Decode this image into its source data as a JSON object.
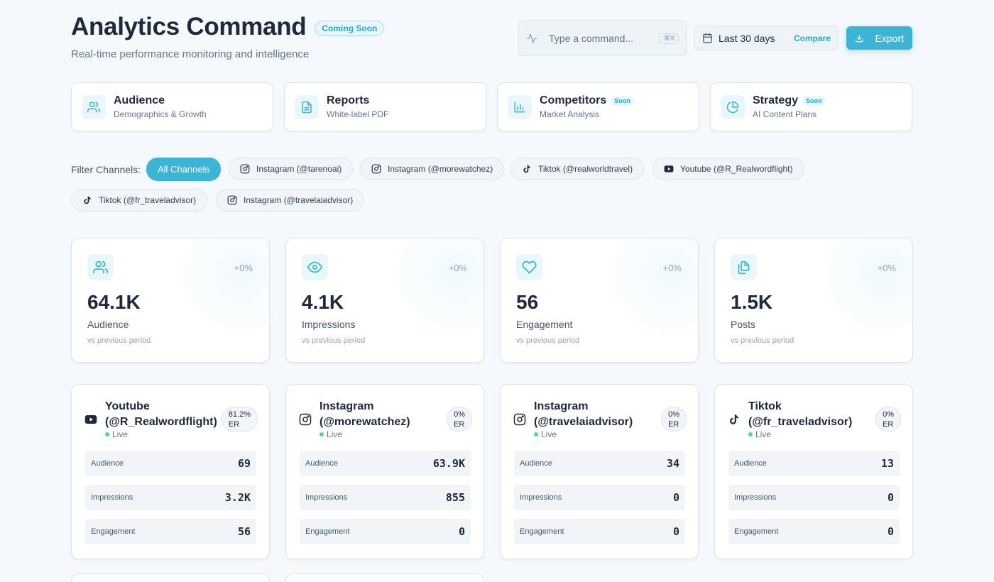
{
  "header": {
    "title": "Analytics Command",
    "badge": "Coming Soon",
    "subtitle": "Real-time performance monitoring and intelligence",
    "command_placeholder": "Type a command...",
    "command_shortcut": "⌘K",
    "date_range": "Last 30 days",
    "compare_label": "Compare",
    "export_label": "Export"
  },
  "nav": [
    {
      "title": "Audience",
      "subtitle": "Demographics & Growth",
      "icon": "users-icon",
      "badge": ""
    },
    {
      "title": "Reports",
      "subtitle": "White-label PDF",
      "icon": "file-text-icon",
      "badge": ""
    },
    {
      "title": "Competitors",
      "subtitle": "Market Analysis",
      "icon": "bar-chart-icon",
      "badge": "Soon"
    },
    {
      "title": "Strategy",
      "subtitle": "AI Content Plans",
      "icon": "pie-chart-icon",
      "badge": "Soon"
    }
  ],
  "filters": {
    "label": "Filter Channels:",
    "chips": [
      {
        "label": "All Channels",
        "icon": "",
        "active": true
      },
      {
        "label": "Instagram (@tarenoai)",
        "icon": "instagram-icon"
      },
      {
        "label": "Instagram (@morewatchez)",
        "icon": "instagram-icon"
      },
      {
        "label": "Tiktok (@realworldtravel)",
        "icon": "tiktok-icon"
      },
      {
        "label": "Youtube (@R_Realwordflight)",
        "icon": "youtube-icon"
      },
      {
        "label": "Tiktok (@fr_traveladvisor)",
        "icon": "tiktok-icon"
      },
      {
        "label": "Instagram (@travelaiadvisor)",
        "icon": "instagram-icon"
      }
    ]
  },
  "stats": [
    {
      "value": "64.1K",
      "label": "Audience",
      "change": "+0%",
      "note": "vs previous period",
      "icon": "users-icon"
    },
    {
      "value": "4.1K",
      "label": "Impressions",
      "change": "+0%",
      "note": "vs previous period",
      "icon": "eye-icon"
    },
    {
      "value": "56",
      "label": "Engagement",
      "change": "+0%",
      "note": "vs previous period",
      "icon": "heart-icon"
    },
    {
      "value": "1.5K",
      "label": "Posts",
      "change": "+0%",
      "note": "vs previous period",
      "icon": "copy-icon"
    }
  ],
  "channels": [
    {
      "platform": "youtube-icon",
      "name": "Youtube (@R_Realwordflight)",
      "status": "Live",
      "er_value": "81.2%",
      "er_label": "ER",
      "metrics": [
        {
          "label": "Audience",
          "value": "69"
        },
        {
          "label": "Impressions",
          "value": "3.2K"
        },
        {
          "label": "Engagement",
          "value": "56"
        }
      ]
    },
    {
      "platform": "instagram-icon",
      "name": "Instagram (@morewatchez)",
      "status": "Live",
      "er_value": "0%",
      "er_label": "ER",
      "metrics": [
        {
          "label": "Audience",
          "value": "63.9K"
        },
        {
          "label": "Impressions",
          "value": "855"
        },
        {
          "label": "Engagement",
          "value": "0"
        }
      ]
    },
    {
      "platform": "instagram-icon",
      "name": "Instagram (@travelaiadvisor)",
      "status": "Live",
      "er_value": "0%",
      "er_label": "ER",
      "metrics": [
        {
          "label": "Audience",
          "value": "34"
        },
        {
          "label": "Impressions",
          "value": "0"
        },
        {
          "label": "Engagement",
          "value": "0"
        }
      ]
    },
    {
      "platform": "tiktok-icon",
      "name": "Tiktok (@fr_traveladvisor)",
      "status": "Live",
      "er_value": "0%",
      "er_label": "ER",
      "metrics": [
        {
          "label": "Audience",
          "value": "13"
        },
        {
          "label": "Impressions",
          "value": "0"
        },
        {
          "label": "Engagement",
          "value": "0"
        }
      ]
    }
  ],
  "colors": {
    "accent": "#3bb4d6",
    "live": "#4ade80",
    "background": "#f6f9fb"
  }
}
